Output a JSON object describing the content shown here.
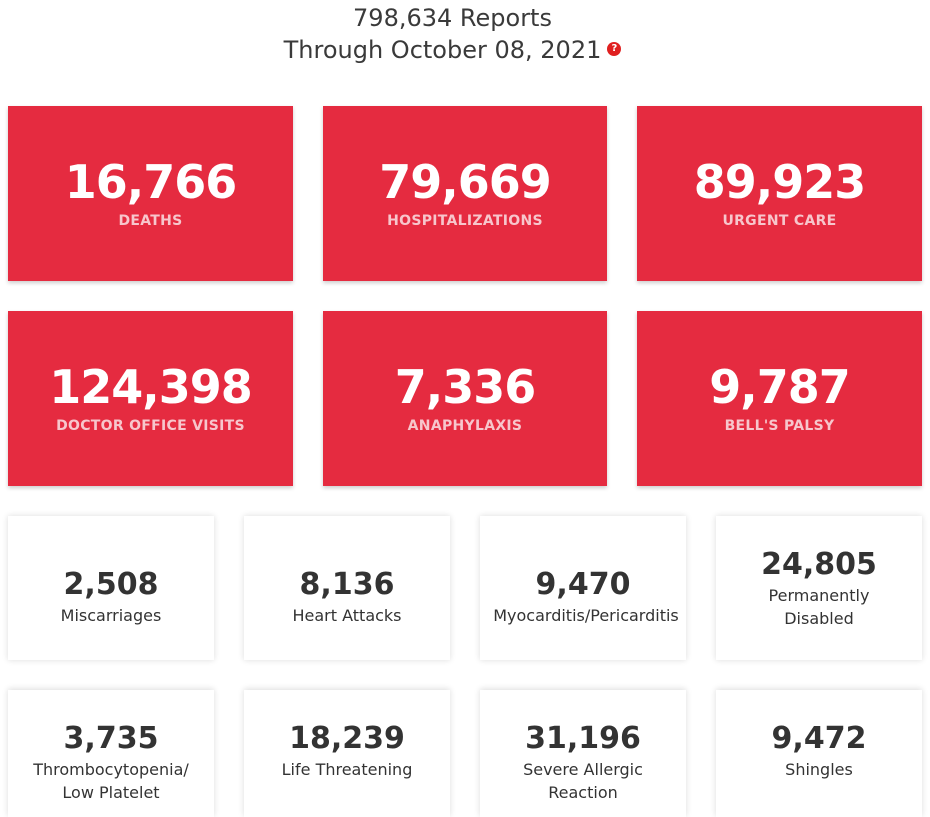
{
  "header": {
    "reports": "798,634 Reports",
    "through": "Through October 08, 2021",
    "help_icon": "?"
  },
  "major_stats": [
    {
      "value": "16,766",
      "label": "DEATHS"
    },
    {
      "value": "79,669",
      "label": "HOSPITALIZATIONS"
    },
    {
      "value": "89,923",
      "label": "URGENT CARE"
    },
    {
      "value": "124,398",
      "label": "DOCTOR OFFICE VISITS"
    },
    {
      "value": "7,336",
      "label": "ANAPHYLAXIS"
    },
    {
      "value": "9,787",
      "label": "BELL'S PALSY"
    }
  ],
  "minor_stats": [
    {
      "value": "2,508",
      "label_lines": [
        "Miscarriages"
      ]
    },
    {
      "value": "8,136",
      "label_lines": [
        "Heart Attacks"
      ]
    },
    {
      "value": "9,470",
      "label_lines": [
        "Myocarditis/Pericarditis"
      ]
    },
    {
      "value": "24,805",
      "label_lines": [
        "Permanently",
        "Disabled"
      ]
    },
    {
      "value": "3,735",
      "label_lines": [
        "Thrombocytopenia/",
        "Low Platelet"
      ]
    },
    {
      "value": "18,239",
      "label_lines": [
        "Life Threatening"
      ]
    },
    {
      "value": "31,196",
      "label_lines": [
        "Severe Allergic",
        "Reaction"
      ]
    },
    {
      "value": "9,472",
      "label_lines": [
        "Shingles"
      ]
    }
  ],
  "colors": {
    "accent": "#e52b40",
    "help_icon": "#e02020"
  }
}
